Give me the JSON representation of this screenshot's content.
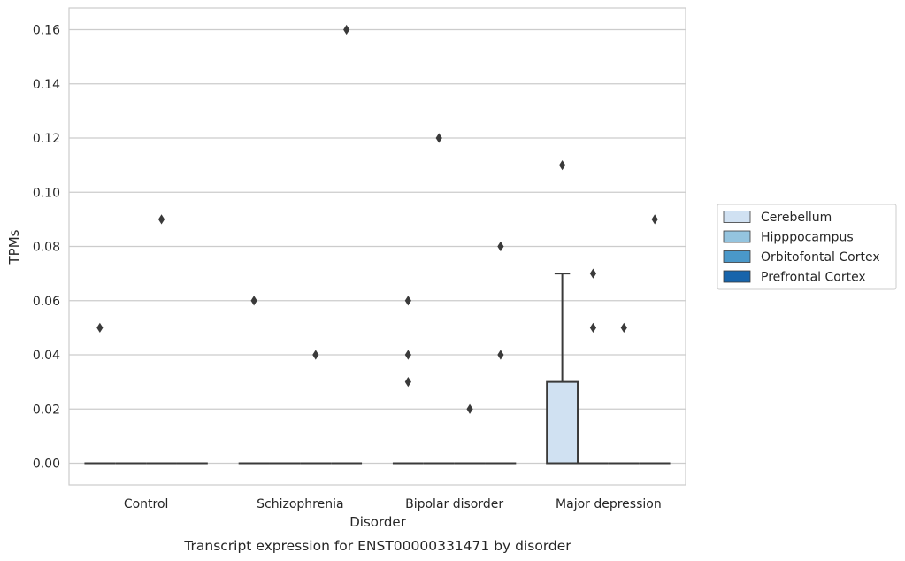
{
  "caption": "Transcript expression for ENST00000331471 by disorder",
  "chart_data": {
    "type": "box",
    "xlabel": "Disorder",
    "ylabel": "TPMs",
    "ylim": [
      -0.008,
      0.168
    ],
    "yticks": [
      0.0,
      0.02,
      0.04,
      0.06,
      0.08,
      0.1,
      0.12,
      0.14,
      0.16
    ],
    "ytick_labels": [
      "0.00",
      "0.02",
      "0.04",
      "0.06",
      "0.08",
      "0.10",
      "0.12",
      "0.14",
      "0.16"
    ],
    "categories": [
      "Control",
      "Schizophrenia",
      "Bipolar disorder",
      "Major depression"
    ],
    "grid": "horizontal",
    "legend_position": "right",
    "series": [
      {
        "name": "Cerebellum",
        "color": "#d0e1f2",
        "boxes": [
          {
            "category": "Control",
            "q1": 0,
            "median": 0,
            "q3": 0,
            "whisker_low": 0,
            "whisker_high": 0,
            "outliers": [
              0.05
            ]
          },
          {
            "category": "Schizophrenia",
            "q1": 0,
            "median": 0,
            "q3": 0,
            "whisker_low": 0,
            "whisker_high": 0,
            "outliers": [
              0.06
            ]
          },
          {
            "category": "Bipolar disorder",
            "q1": 0,
            "median": 0,
            "q3": 0,
            "whisker_low": 0,
            "whisker_high": 0,
            "outliers": [
              0.03,
              0.04,
              0.06
            ]
          },
          {
            "category": "Major depression",
            "q1": 0,
            "median": 0,
            "q3": 0.03,
            "whisker_low": 0,
            "whisker_high": 0.07,
            "outliers": [
              0.11
            ]
          }
        ]
      },
      {
        "name": "Hipppocampus",
        "color": "#94c4df",
        "boxes": [
          {
            "category": "Control",
            "q1": 0,
            "median": 0,
            "q3": 0,
            "whisker_low": 0,
            "whisker_high": 0,
            "outliers": []
          },
          {
            "category": "Schizophrenia",
            "q1": 0,
            "median": 0,
            "q3": 0,
            "whisker_low": 0,
            "whisker_high": 0,
            "outliers": []
          },
          {
            "category": "Bipolar disorder",
            "q1": 0,
            "median": 0,
            "q3": 0,
            "whisker_low": 0,
            "whisker_high": 0,
            "outliers": [
              0.12
            ]
          },
          {
            "category": "Major depression",
            "q1": 0,
            "median": 0,
            "q3": 0,
            "whisker_low": 0,
            "whisker_high": 0,
            "outliers": [
              0.05,
              0.07
            ]
          }
        ]
      },
      {
        "name": "Orbitofontal Cortex",
        "color": "#4a98c9",
        "boxes": [
          {
            "category": "Control",
            "q1": 0,
            "median": 0,
            "q3": 0,
            "whisker_low": 0,
            "whisker_high": 0,
            "outliers": [
              0.09
            ]
          },
          {
            "category": "Schizophrenia",
            "q1": 0,
            "median": 0,
            "q3": 0,
            "whisker_low": 0,
            "whisker_high": 0,
            "outliers": [
              0.04
            ]
          },
          {
            "category": "Bipolar disorder",
            "q1": 0,
            "median": 0,
            "q3": 0,
            "whisker_low": 0,
            "whisker_high": 0,
            "outliers": [
              0.02
            ]
          },
          {
            "category": "Major depression",
            "q1": 0,
            "median": 0,
            "q3": 0,
            "whisker_low": 0,
            "whisker_high": 0,
            "outliers": [
              0.05
            ]
          }
        ]
      },
      {
        "name": "Prefrontal Cortex",
        "color": "#1764ab",
        "boxes": [
          {
            "category": "Control",
            "q1": 0,
            "median": 0,
            "q3": 0,
            "whisker_low": 0,
            "whisker_high": 0,
            "outliers": []
          },
          {
            "category": "Schizophrenia",
            "q1": 0,
            "median": 0,
            "q3": 0,
            "whisker_low": 0,
            "whisker_high": 0,
            "outliers": [
              0.16
            ]
          },
          {
            "category": "Bipolar disorder",
            "q1": 0,
            "median": 0,
            "q3": 0,
            "whisker_low": 0,
            "whisker_high": 0,
            "outliers": [
              0.04,
              0.08
            ]
          },
          {
            "category": "Major depression",
            "q1": 0,
            "median": 0,
            "q3": 0,
            "whisker_low": 0,
            "whisker_high": 0,
            "outliers": [
              0.09
            ]
          }
        ]
      }
    ]
  }
}
